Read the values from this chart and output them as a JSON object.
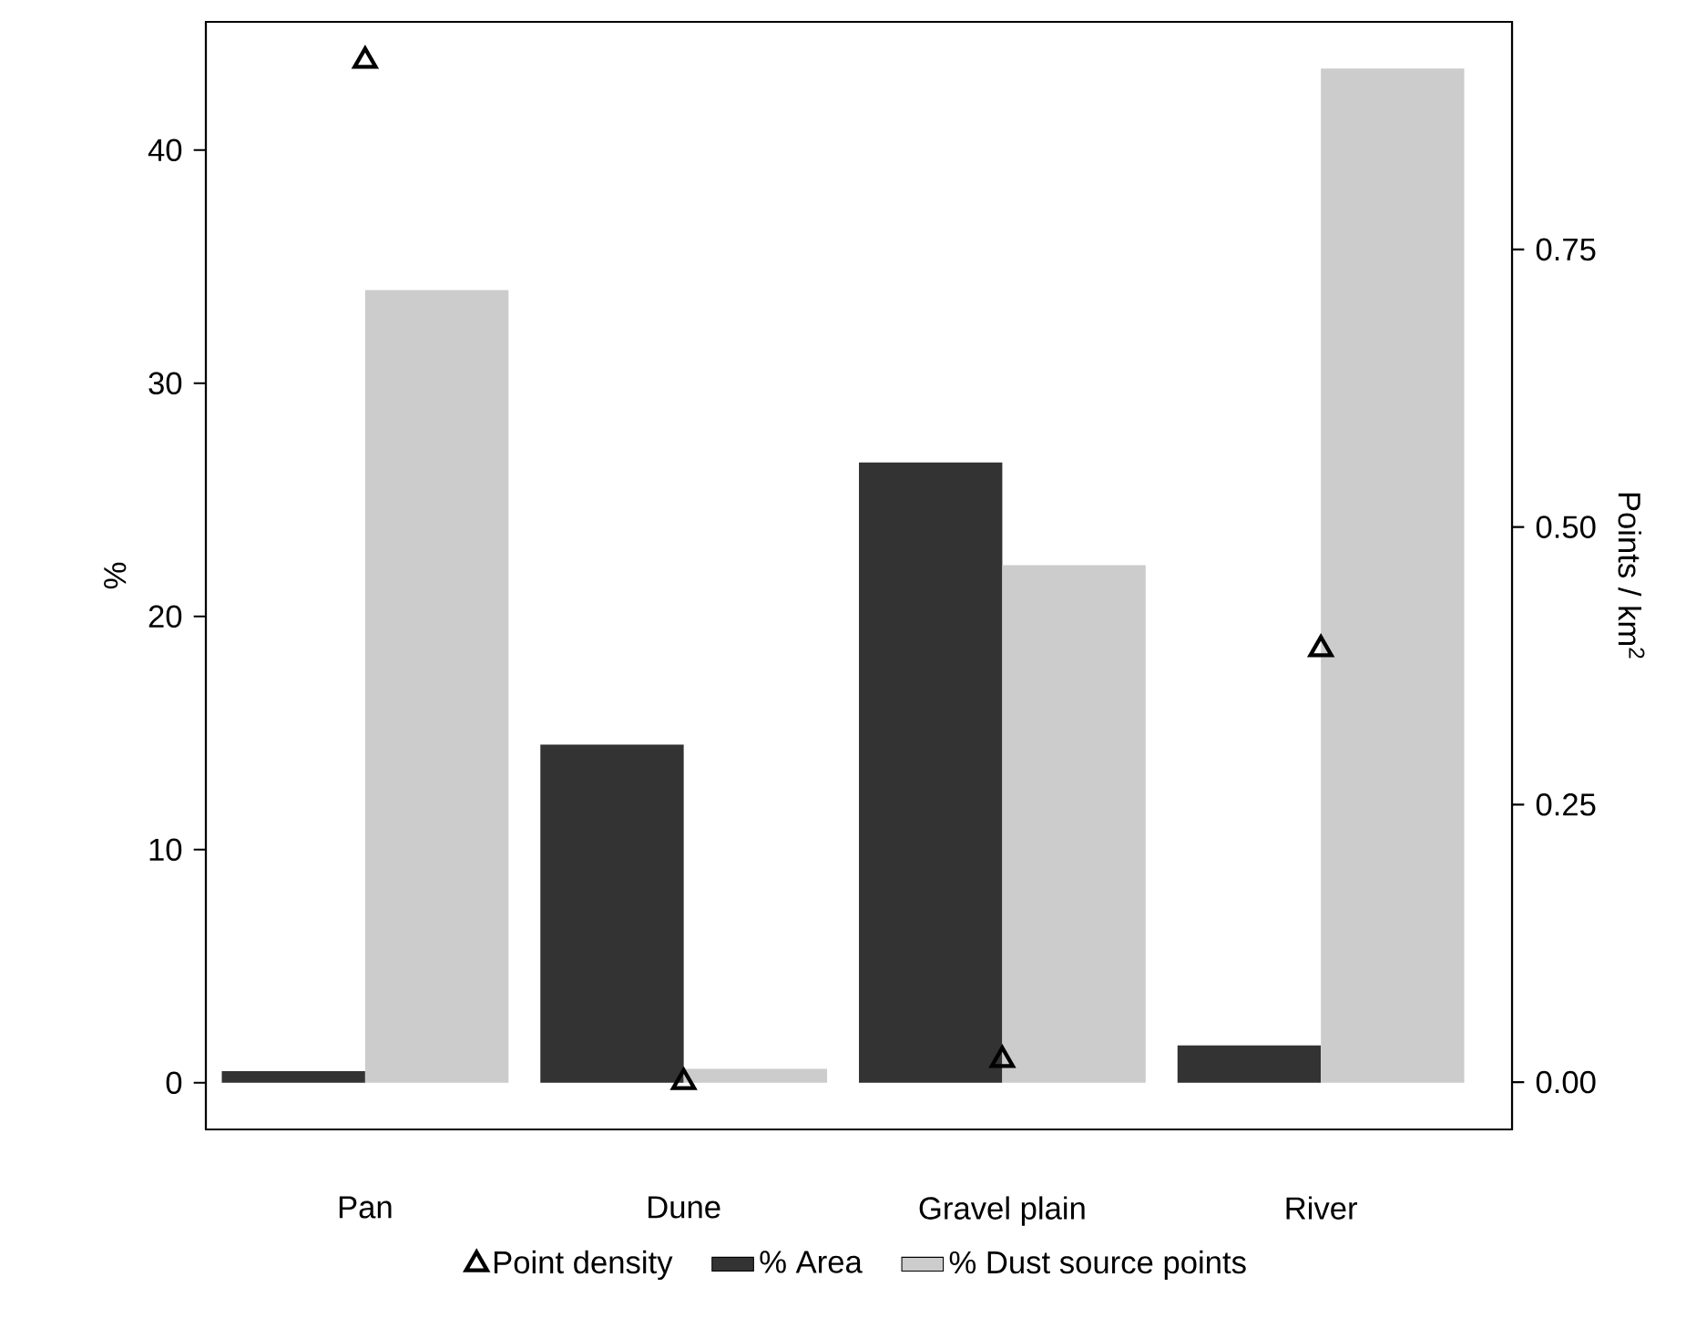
{
  "chart_data": {
    "type": "bar",
    "categories": [
      "Pan",
      "Dune",
      "Gravel plain",
      "River"
    ],
    "series": [
      {
        "name": "Point density",
        "type": "scatter",
        "axis": "y2",
        "marker": "triangle",
        "color": "#000000",
        "values": [
          0.92,
          0.0,
          0.02,
          0.39
        ]
      },
      {
        "name": "% Area",
        "color": "#333333",
        "values": [
          0.5,
          14.5,
          26.6,
          1.6
        ]
      },
      {
        "name": "% Dust source points",
        "color": "#cccccc",
        "values": [
          34.0,
          0.6,
          22.2,
          43.5
        ]
      }
    ],
    "ylabel": "%",
    "y2label": "Points / km$^{2}$",
    "ylim": [
      -2,
      45.5
    ],
    "yticks": [
      0,
      10,
      20,
      30,
      40
    ],
    "y2lim": [
      -0.0426,
      0.955
    ],
    "y2ticks": [
      {
        "value": 0,
        "label": "0.00"
      },
      {
        "value": 0.25,
        "label": "0.25"
      },
      {
        "value": 0.5,
        "label": "0.50"
      },
      {
        "value": 0.75,
        "label": "0.75"
      }
    ],
    "grid": false,
    "legend": "bottom"
  }
}
